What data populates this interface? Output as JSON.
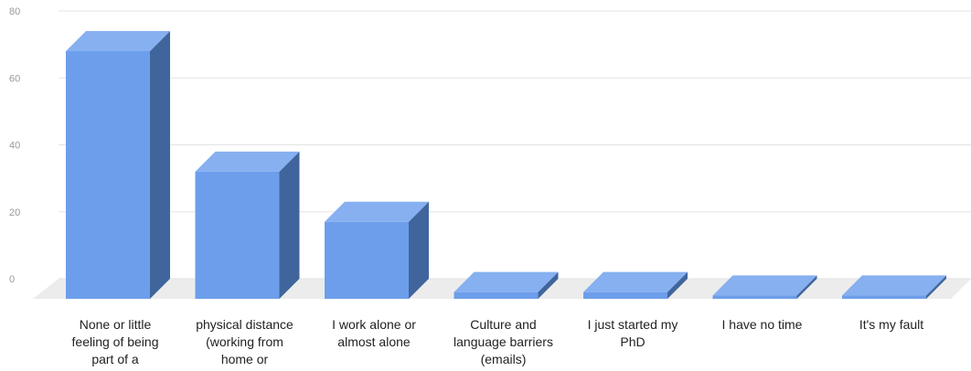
{
  "chart_data": {
    "type": "bar",
    "title": "",
    "xlabel": "",
    "ylabel": "",
    "ylim": [
      0,
      80
    ],
    "yticks": [
      0,
      20,
      40,
      60,
      80
    ],
    "grid": true,
    "style": "3d",
    "categories": [
      [
        "None or little",
        "feeling of being",
        "part of a"
      ],
      [
        "physical distance",
        "(working from",
        "home or"
      ],
      [
        "I work alone or",
        "almost alone"
      ],
      [
        "Culture and",
        "language barriers",
        "(emails)"
      ],
      [
        "I just started my",
        "PhD"
      ],
      [
        "I have no time"
      ],
      [
        "It's my fault"
      ]
    ],
    "values": [
      74,
      38,
      23,
      2,
      2,
      1,
      1
    ],
    "colors": {
      "front": "#6d9eeb",
      "top": "#86b0f0",
      "side": "#40659c",
      "floor": "#ececec",
      "grid": "#e3e3e3"
    }
  }
}
